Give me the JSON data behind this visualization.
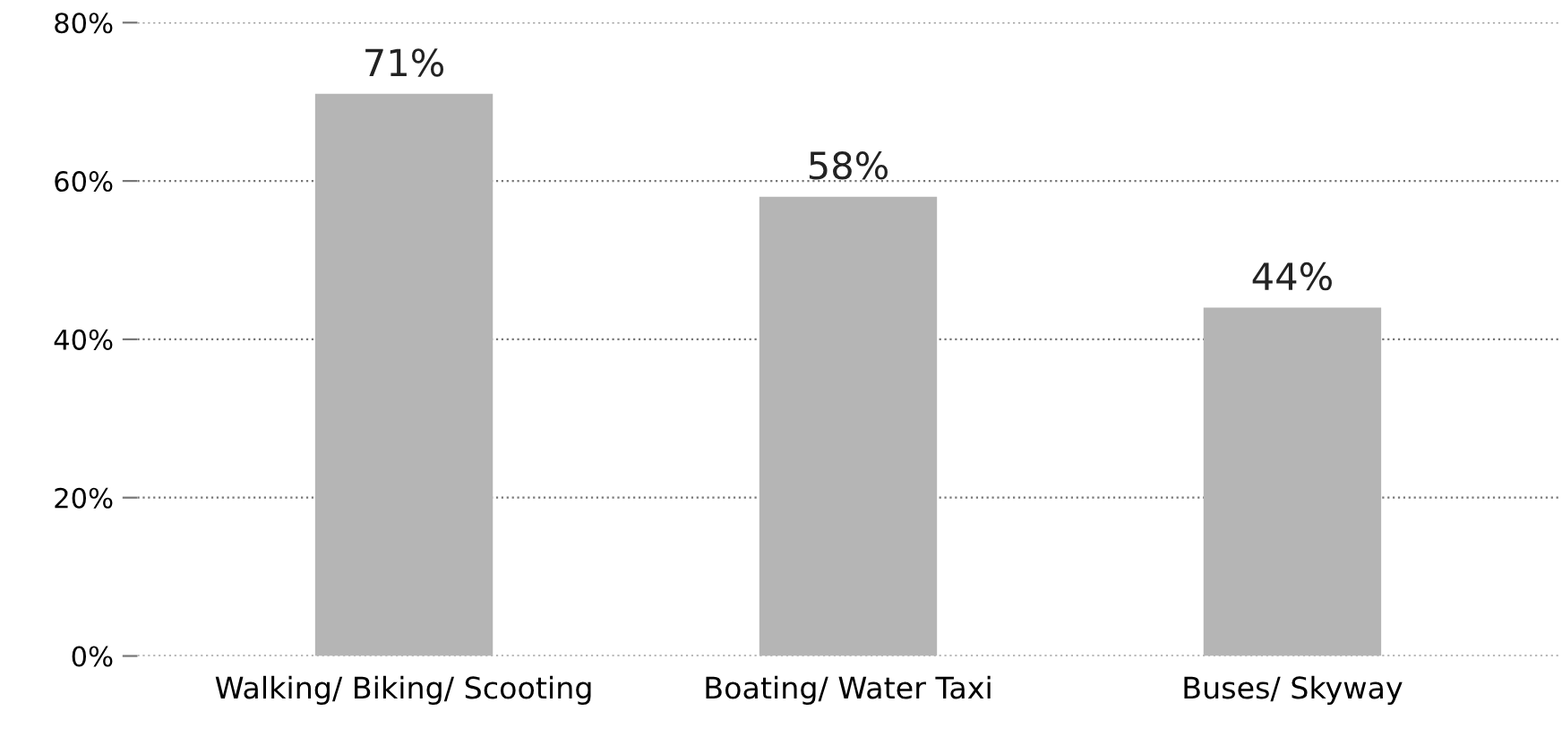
{
  "chart_data": {
    "type": "bar",
    "categories": [
      "Walking/ Biking/ Scooting",
      "Boating/ Water Taxi",
      "Buses/ Skyway"
    ],
    "values": [
      71,
      58,
      44
    ],
    "color": "#b5b5b5",
    "value_labels": [
      "71%",
      "58%",
      "44%"
    ],
    "ylim": [
      0,
      80
    ],
    "yticks": [
      {
        "value": 0,
        "label": "0%"
      },
      {
        "value": 20,
        "label": "20%"
      },
      {
        "value": 40,
        "label": "40%"
      },
      {
        "value": 60,
        "label": "60%"
      },
      {
        "value": 80,
        "label": "80%"
      }
    ],
    "grid": "y",
    "line_style": "dotted"
  }
}
